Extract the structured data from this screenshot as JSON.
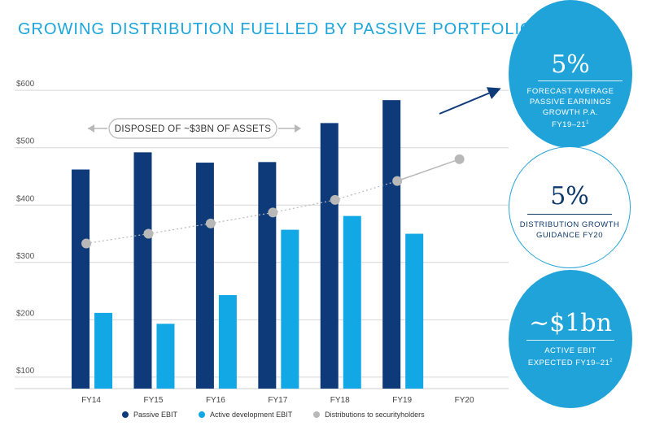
{
  "title": "GROWING DISTRIBUTION FUELLED BY PASSIVE PORTFOLIO",
  "annotation": {
    "label": "DISPOSED OF ~$3BN OF ASSETS"
  },
  "colors": {
    "passive": "#0e3a7a",
    "active": "#12a8e6",
    "distribution": "#b8b8b8",
    "accent": "#1aa5dc"
  },
  "circles": [
    {
      "big": "5%",
      "lines": [
        "FORECAST AVERAGE",
        "PASSIVE EARNINGS",
        "GROWTH P.A."
      ],
      "last": "FY19–21",
      "sup": "1"
    },
    {
      "big": "5%",
      "lines": [
        "DISTRIBUTION GROWTH",
        "GUIDANCE FY20"
      ],
      "last": "",
      "sup": ""
    },
    {
      "big": "~$1bn",
      "lines": [
        "ACTIVE EBIT"
      ],
      "last": "EXPECTED FY19–21",
      "sup": "2"
    }
  ],
  "chart_data": {
    "type": "bar",
    "categories": [
      "FY14",
      "FY15",
      "FY16",
      "FY17",
      "FY18",
      "FY19",
      "FY20"
    ],
    "ylim": [
      80,
      630
    ],
    "yticks": [
      100,
      200,
      300,
      400,
      500,
      600
    ],
    "ytick_labels": [
      "$100",
      "$200",
      "$300",
      "$400",
      "$500",
      "$600"
    ],
    "grid": true,
    "legend_position": "bottom",
    "series": [
      {
        "name": "Passive EBIT",
        "type": "bar",
        "values": [
          462,
          492,
          474,
          475,
          543,
          583,
          null
        ]
      },
      {
        "name": "Active development EBIT",
        "type": "bar",
        "values": [
          212,
          193,
          243,
          357,
          381,
          350,
          null
        ]
      },
      {
        "name": "Distributions to securityholders",
        "type": "dotted-line",
        "values": [
          333,
          350,
          368,
          387,
          409,
          442,
          480
        ]
      }
    ]
  }
}
